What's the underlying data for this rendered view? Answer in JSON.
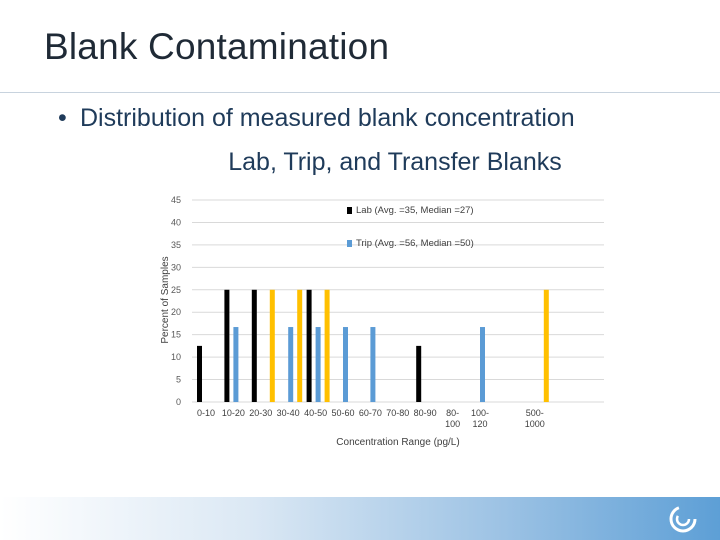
{
  "slide": {
    "title": "Blank Contamination",
    "bullet": "Distribution of measured blank concentration",
    "subtitle": "Lab, Trip, and Transfer Blanks"
  },
  "chart_data": {
    "type": "bar",
    "title": "",
    "xlabel": "Concentration Range (pg/L)",
    "ylabel": "Percent of Samples",
    "ylim": [
      0,
      45
    ],
    "yticks": [
      0,
      5,
      10,
      15,
      20,
      25,
      30,
      35,
      40,
      45
    ],
    "grid": true,
    "legend_position": "top-right",
    "categories": [
      [
        "0-10"
      ],
      [
        "10-20"
      ],
      [
        "20-30"
      ],
      [
        "30-40"
      ],
      [
        "40-50"
      ],
      [
        "50-60"
      ],
      [
        "60-70"
      ],
      [
        "70-80"
      ],
      [
        "80-90"
      ],
      [
        "80-",
        "100"
      ],
      [
        "100-",
        "120"
      ],
      [],
      [
        "500-",
        "1000"
      ]
    ],
    "series": [
      {
        "name": "Lab (Avg. =35, Median =27)",
        "color": "#000000",
        "values": [
          12.5,
          25,
          25,
          0,
          25,
          0,
          0,
          0,
          12.5,
          0,
          0,
          0,
          0
        ]
      },
      {
        "name": "Trip (Avg. =56, Median =50)",
        "color": "#5b9bd5",
        "values": [
          0,
          16.7,
          0,
          16.7,
          16.7,
          16.7,
          16.7,
          0,
          0,
          0,
          16.7,
          0,
          0
        ]
      },
      {
        "name": "",
        "color": "#ffc000",
        "values": [
          0,
          0,
          25,
          25,
          25,
          0,
          0,
          0,
          0,
          0,
          0,
          0,
          25
        ]
      }
    ]
  }
}
